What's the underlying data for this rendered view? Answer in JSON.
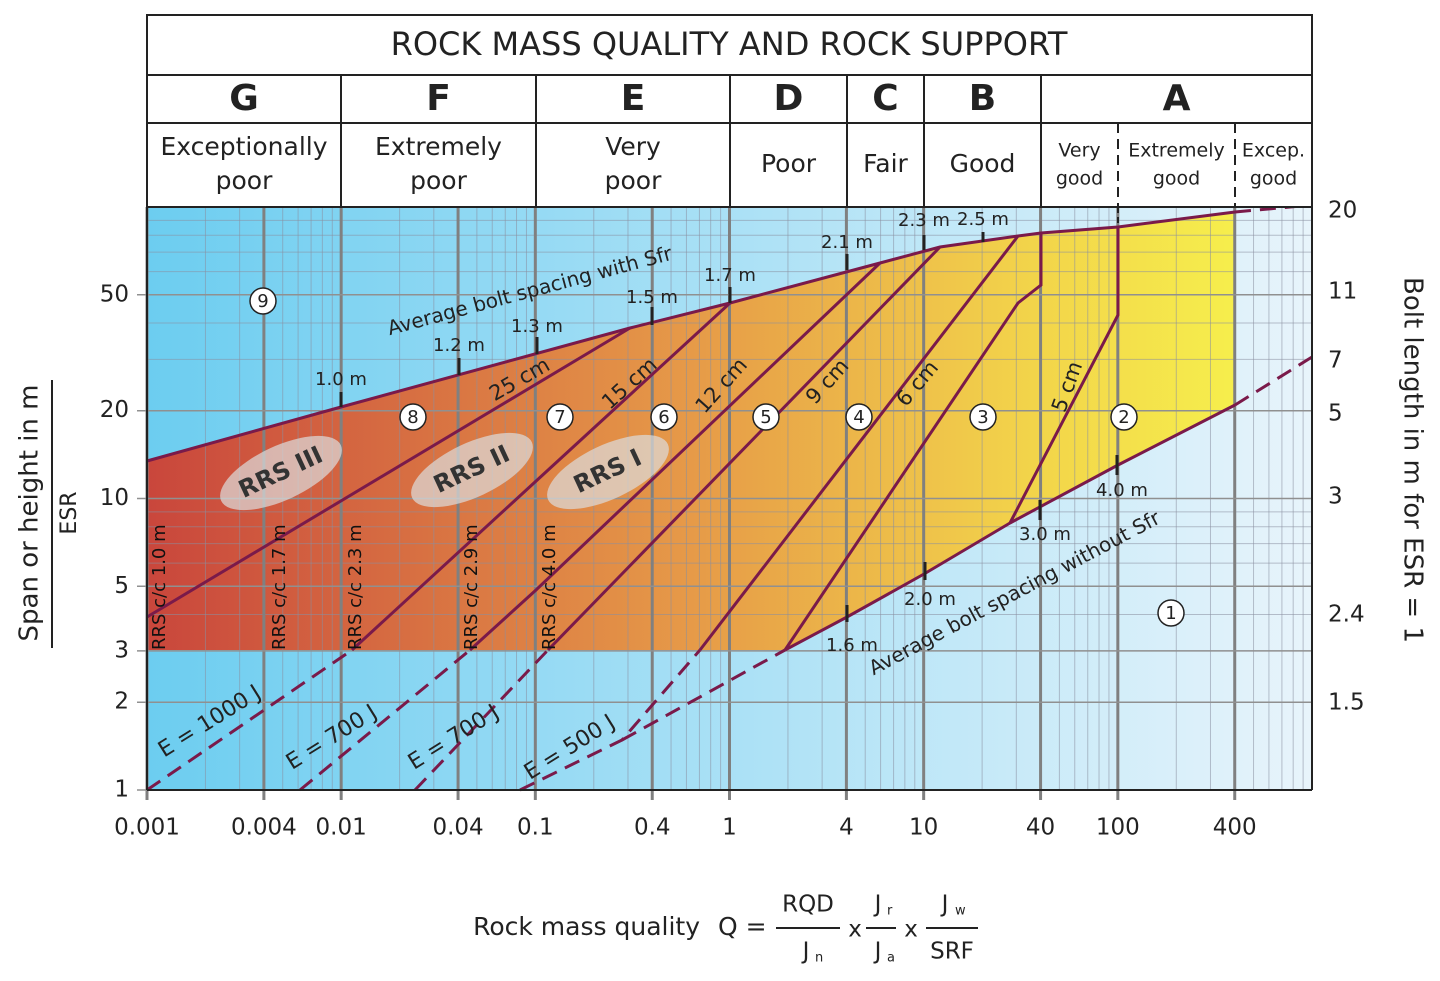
{
  "chart_data": {
    "type": "support-chart",
    "title": "ROCK MASS QUALITY AND ROCK SUPPORT",
    "classes": [
      {
        "letter": "G",
        "description": [
          "Exceptionally",
          "poor"
        ]
      },
      {
        "letter": "F",
        "description": [
          "Extremely",
          "poor"
        ]
      },
      {
        "letter": "E",
        "description": [
          "Very",
          "poor"
        ]
      },
      {
        "letter": "D",
        "description": [
          "Poor"
        ]
      },
      {
        "letter": "C",
        "description": [
          "Fair"
        ]
      },
      {
        "letter": "B",
        "description": [
          "Good"
        ]
      },
      {
        "letter": "A",
        "subclasses": [
          [
            "Very",
            "good"
          ],
          [
            "Extremely",
            "good"
          ],
          [
            "Excep.",
            "good"
          ]
        ]
      }
    ],
    "x_scale": "log",
    "xlim": [
      0.001,
      1000
    ],
    "xticks": [
      0.001,
      0.004,
      0.01,
      0.04,
      0.1,
      0.4,
      1,
      4,
      10,
      40,
      100,
      400
    ],
    "y_scale": "log",
    "ylim": [
      1,
      100
    ],
    "yticks": [
      1,
      2,
      3,
      5,
      10,
      20,
      50
    ],
    "y_label": "Span or height in m",
    "y_label_denominator": "ESR",
    "y2_label": "Bolt length in m for ESR = 1",
    "y2_labels": [
      20,
      11,
      7,
      5,
      3,
      2.4,
      1.5
    ],
    "x_label": "Rock mass quality",
    "formula": {
      "lhs": "Q =",
      "terms": [
        [
          "RQD",
          "J",
          "n"
        ],
        [
          "J",
          "r",
          "J",
          "a"
        ],
        [
          "J",
          "w",
          "SRF"
        ]
      ],
      "times": "x"
    },
    "bolt_spacing_with_sfr": {
      "label": "Average bolt spacing with Sfr",
      "spacings": [
        "1.0 m",
        "1.2 m",
        "1.3 m",
        "1.5 m",
        "1.7 m",
        "2.1 m",
        "2.3 m",
        "2.5 m"
      ]
    },
    "bolt_spacing_without_sfr": {
      "label": "Average bolt spacing without Sfr",
      "spacings": [
        "1.6 m",
        "2.0 m",
        "3.0 m",
        "4.0 m"
      ]
    },
    "shotcrete": [
      "25 cm",
      "15 cm",
      "12 cm",
      "9 cm",
      "6 cm",
      "5 cm"
    ],
    "support_categories": [
      "1",
      "2",
      "3",
      "4",
      "5",
      "6",
      "7",
      "8",
      "9"
    ],
    "rrs_classes": [
      "RRS III",
      "RRS II",
      "RRS I"
    ],
    "rrs_spacing": [
      "RRS  c/c 1.0 m",
      "RRS  c/c 1.7 m",
      "RRS  c/c 2.3 m",
      "RRS  c/c 2.9 m",
      "RRS  c/c 4.0 m"
    ],
    "energy": [
      "E = 1000 J",
      "E = 700 J",
      "E = 700 J",
      "E = 500 J"
    ]
  }
}
